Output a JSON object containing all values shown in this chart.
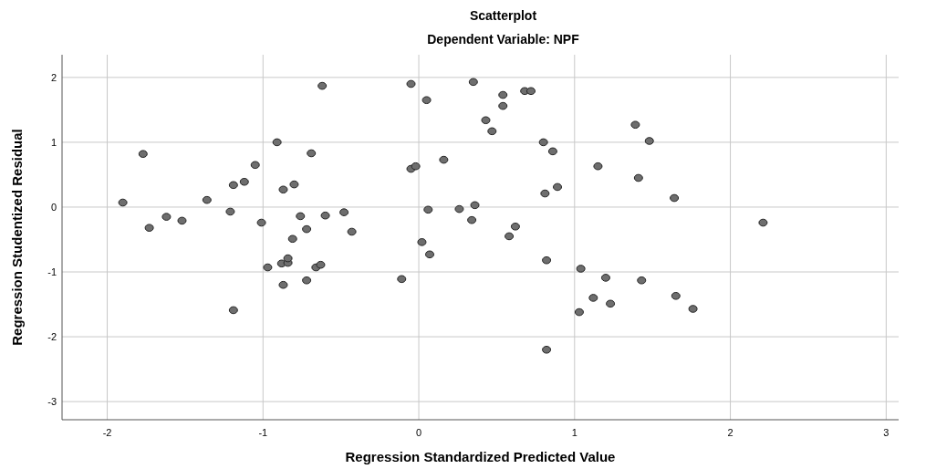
{
  "chart_data": {
    "type": "scatter",
    "title": "Scatterplot",
    "subtitle": "Dependent Variable: NPF",
    "xlabel": "Regression Standardized Predicted Value",
    "ylabel": "Regression Studentized Residual",
    "xlim": [
      -2.29,
      3.08
    ],
    "ylim": [
      -3.28,
      2.35
    ],
    "xticks": [
      -2,
      -1,
      0,
      1,
      2,
      3
    ],
    "yticks": [
      -3,
      -2,
      -1,
      0,
      1,
      2
    ],
    "grid": true,
    "marker": "circle",
    "series": [
      {
        "color": "#6e6e6e",
        "x": [
          -1.9,
          -1.77,
          -1.73,
          -1.62,
          -1.52,
          -1.36,
          -1.21,
          -1.19,
          -1.19,
          -1.12,
          -1.05,
          -1.01,
          -0.97,
          -0.91,
          -0.88,
          -0.87,
          -0.87,
          -0.84,
          -0.84,
          -0.81,
          -0.8,
          -0.76,
          -0.72,
          -0.72,
          -0.69,
          -0.66,
          -0.63,
          -0.62,
          -0.6,
          -0.48,
          -0.43,
          -0.11,
          -0.05,
          -0.05,
          -0.02,
          0.02,
          0.05,
          0.06,
          0.07,
          0.16,
          0.26,
          0.35,
          0.34,
          0.36,
          0.43,
          0.47,
          0.54,
          0.54,
          0.58,
          0.62,
          0.68,
          0.72,
          0.8,
          0.81,
          0.82,
          0.82,
          0.86,
          0.89,
          1.04,
          1.03,
          1.12,
          1.15,
          1.2,
          1.23,
          1.39,
          1.41,
          1.43,
          1.48,
          1.64,
          1.65,
          1.76,
          2.21
        ],
        "values": [
          0.07,
          0.82,
          -0.32,
          -0.15,
          -0.21,
          0.11,
          -0.07,
          0.34,
          -1.59,
          0.39,
          0.65,
          -0.24,
          -0.93,
          1.0,
          -0.87,
          0.27,
          -1.2,
          -0.86,
          -0.79,
          -0.49,
          0.35,
          -0.14,
          -0.34,
          -1.13,
          0.83,
          -0.93,
          -0.89,
          1.87,
          -0.13,
          -0.08,
          -0.38,
          -1.11,
          1.9,
          0.59,
          0.63,
          -0.54,
          1.65,
          -0.04,
          -0.73,
          0.73,
          -0.03,
          1.93,
          -0.2,
          0.03,
          1.34,
          1.17,
          1.56,
          1.73,
          -0.45,
          -0.3,
          1.79,
          1.79,
          1.0,
          0.21,
          -2.2,
          -0.82,
          0.86,
          0.31,
          -0.95,
          -1.62,
          -1.4,
          0.63,
          -1.09,
          -1.49,
          1.27,
          0.45,
          -1.13,
          1.02,
          0.14,
          -1.37,
          -1.57,
          -0.24
        ]
      }
    ]
  }
}
